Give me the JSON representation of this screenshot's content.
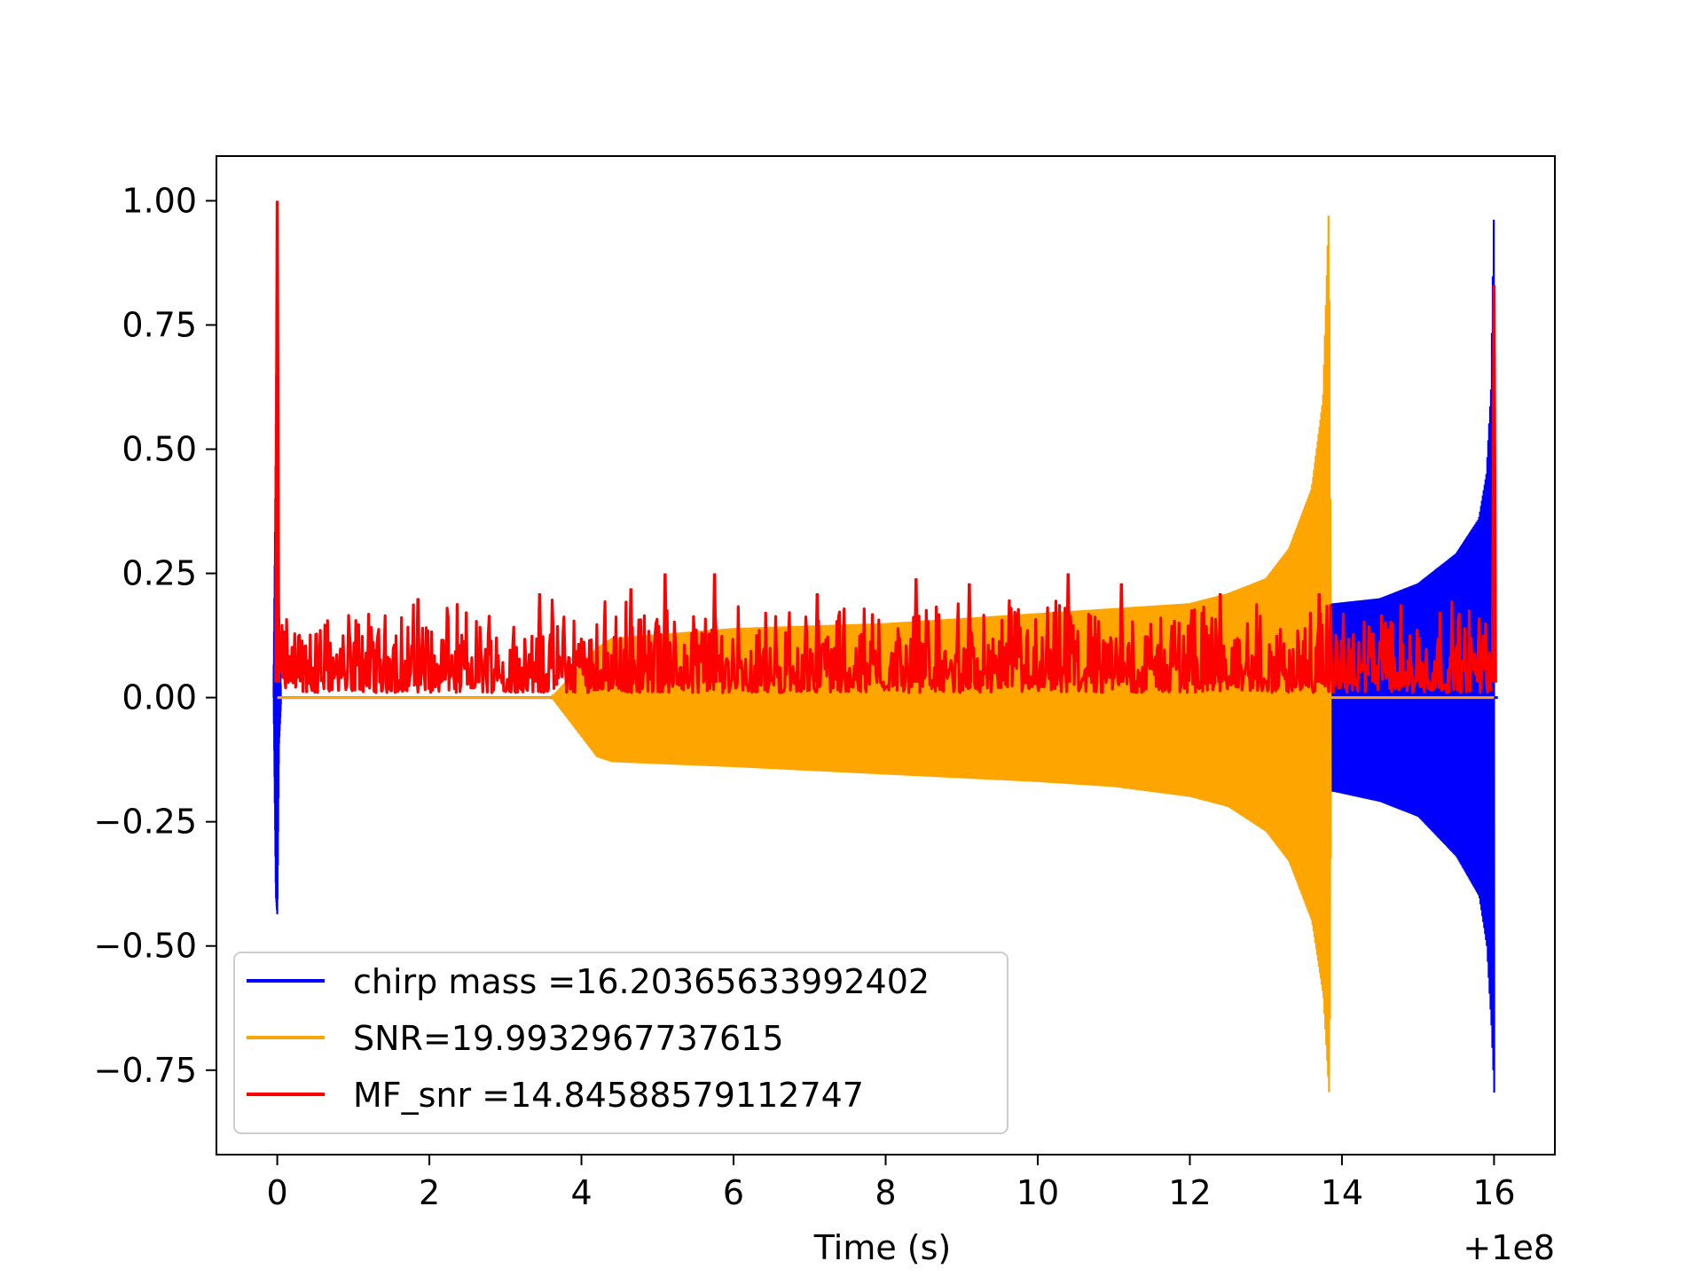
{
  "chart_data": {
    "type": "line",
    "title": "",
    "xlabel": "Time (s)",
    "ylabel": "",
    "x_offset_label": "+1e8",
    "xlim": [
      -0.8,
      16.8
    ],
    "ylim": [
      -0.92,
      1.09
    ],
    "x_ticks": [
      0,
      2,
      4,
      6,
      8,
      10,
      12,
      14,
      16
    ],
    "x_tick_labels": [
      "0",
      "2",
      "4",
      "6",
      "8",
      "10",
      "12",
      "14",
      "16"
    ],
    "y_ticks": [
      1.0,
      0.75,
      0.5,
      0.25,
      0.0,
      -0.25,
      -0.5,
      -0.75
    ],
    "y_tick_labels": [
      "1.00",
      "0.75",
      "0.50",
      "0.25",
      "0.00",
      "−0.25",
      "−0.50",
      "−0.75"
    ],
    "grid": false,
    "legend_position": "lower-left",
    "series": [
      {
        "name": "chirp mass =16.20365633992402",
        "color": "#0000ff",
        "description": "whitened chirp waveform envelope",
        "x": [
          -0.05,
          -0.02,
          0.0,
          0.02,
          0.05,
          13.9,
          14.5,
          15.0,
          15.5,
          15.8,
          15.9,
          15.96,
          16.0
        ],
        "upper": [
          0.0,
          0.5,
          1.0,
          0.2,
          0.0,
          0.19,
          0.2,
          0.23,
          0.29,
          0.36,
          0.45,
          0.62,
          1.0
        ],
        "lower": [
          0.0,
          -0.4,
          -0.44,
          -0.1,
          0.0,
          -0.19,
          -0.21,
          -0.24,
          -0.32,
          -0.4,
          -0.5,
          -0.66,
          -0.81
        ]
      },
      {
        "name": "SNR=19.9932967737615",
        "color": "#ffa500",
        "description": "injected signal envelope",
        "x": [
          0.0,
          3.6,
          4.2,
          4.4,
          6.0,
          8.0,
          10.0,
          11.0,
          12.0,
          12.5,
          13.0,
          13.3,
          13.6,
          13.75,
          13.83,
          13.86
        ],
        "upper": [
          0.0,
          0.0,
          0.1,
          0.12,
          0.14,
          0.15,
          0.17,
          0.18,
          0.19,
          0.21,
          0.24,
          0.3,
          0.42,
          0.6,
          1.0,
          0.0
        ],
        "lower": [
          0.0,
          0.0,
          -0.12,
          -0.13,
          -0.14,
          -0.155,
          -0.17,
          -0.18,
          -0.2,
          -0.22,
          -0.27,
          -0.33,
          -0.45,
          -0.6,
          -0.81,
          0.0
        ]
      },
      {
        "name": "MF_snr =14.84588579112747",
        "color": "#ff0000",
        "description": "matched filter SNR time series (noise band ~0 to 0.2 with peaks)",
        "x_range": [
          0.0,
          16.0
        ],
        "band": [
          0.0,
          0.2
        ],
        "peaks": [
          {
            "x": 0.0,
            "y": 1.0
          },
          {
            "x": 16.0,
            "y": 0.83
          },
          {
            "x": 5.1,
            "y": 0.25
          },
          {
            "x": 5.75,
            "y": 0.25
          },
          {
            "x": 10.4,
            "y": 0.25
          },
          {
            "x": 8.4,
            "y": 0.24
          },
          {
            "x": 9.1,
            "y": 0.23
          },
          {
            "x": 11.1,
            "y": 0.23
          },
          {
            "x": 4.65,
            "y": 0.22
          },
          {
            "x": 13.7,
            "y": 0.21
          },
          {
            "x": 3.45,
            "y": 0.21
          },
          {
            "x": 1.85,
            "y": 0.2
          },
          {
            "x": 7.1,
            "y": 0.21
          },
          {
            "x": 12.4,
            "y": 0.21
          }
        ]
      }
    ]
  }
}
